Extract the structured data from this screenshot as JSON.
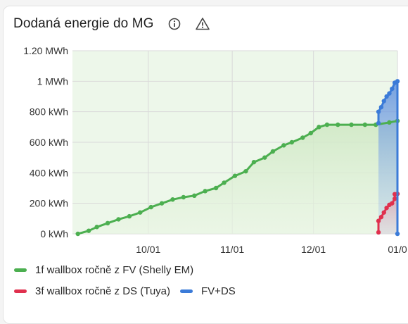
{
  "card": {
    "title": "Dodaná energie do MG",
    "icons": [
      "info-icon",
      "warning-icon"
    ]
  },
  "colors": {
    "green": "#4caf50",
    "red": "#e0304e",
    "blue": "#3b7bd8",
    "area_green": "#dff0d8",
    "grid": "#d9d9d9"
  },
  "chart_data": {
    "type": "line",
    "y_unit": "kWh",
    "ylim": [
      0,
      1200
    ],
    "y_ticks": [
      {
        "value": 0,
        "label": "0 kWh"
      },
      {
        "value": 200,
        "label": "200 kWh"
      },
      {
        "value": 400,
        "label": "400 kWh"
      },
      {
        "value": 600,
        "label": "600 kWh"
      },
      {
        "value": 800,
        "label": "800 kWh"
      },
      {
        "value": 1000,
        "label": "1 MWh"
      },
      {
        "value": 1200,
        "label": "1.20 MWh"
      }
    ],
    "xlim": [
      "2024-09-03",
      "2025-01-01"
    ],
    "x_ticks": [
      {
        "date": "2024-10-01",
        "label": "10/01"
      },
      {
        "date": "2024-11-01",
        "label": "11/01"
      },
      {
        "date": "2024-12-01",
        "label": "12/01"
      },
      {
        "date": "2025-01-01",
        "label": "01/0"
      }
    ],
    "series": [
      {
        "name": "1f wallbox ročně z FV (Shelly EM)",
        "color": "#4caf50",
        "points": [
          [
            "2024-09-05",
            0
          ],
          [
            "2024-09-09",
            20
          ],
          [
            "2024-09-12",
            45
          ],
          [
            "2024-09-16",
            70
          ],
          [
            "2024-09-20",
            95
          ],
          [
            "2024-09-24",
            115
          ],
          [
            "2024-09-28",
            140
          ],
          [
            "2024-10-02",
            175
          ],
          [
            "2024-10-06",
            200
          ],
          [
            "2024-10-10",
            225
          ],
          [
            "2024-10-14",
            240
          ],
          [
            "2024-10-18",
            250
          ],
          [
            "2024-10-22",
            280
          ],
          [
            "2024-10-26",
            300
          ],
          [
            "2024-10-29",
            335
          ],
          [
            "2024-11-02",
            380
          ],
          [
            "2024-11-06",
            410
          ],
          [
            "2024-11-09",
            470
          ],
          [
            "2024-11-13",
            500
          ],
          [
            "2024-11-16",
            540
          ],
          [
            "2024-11-20",
            580
          ],
          [
            "2024-11-23",
            600
          ],
          [
            "2024-11-27",
            630
          ],
          [
            "2024-11-30",
            660
          ],
          [
            "2024-12-03",
            700
          ],
          [
            "2024-12-06",
            715
          ],
          [
            "2024-12-10",
            715
          ],
          [
            "2024-12-15",
            715
          ],
          [
            "2024-12-20",
            715
          ],
          [
            "2024-12-24",
            715
          ],
          [
            "2024-12-29",
            730
          ],
          [
            "2025-01-01",
            740
          ]
        ]
      },
      {
        "name": "3f wallbox ročně z DS (Tuya)",
        "color": "#e0304e",
        "points": [
          [
            "2024-12-25",
            10
          ],
          [
            "2024-12-25",
            85
          ],
          [
            "2024-12-26",
            110
          ],
          [
            "2024-12-27",
            140
          ],
          [
            "2024-12-28",
            170
          ],
          [
            "2024-12-29",
            190
          ],
          [
            "2024-12-30",
            200
          ],
          [
            "2024-12-31",
            230
          ],
          [
            "2024-12-31",
            260
          ],
          [
            "2025-01-01",
            262
          ]
        ]
      },
      {
        "name": "FV+DS",
        "color": "#3b7bd8",
        "points": [
          [
            "2024-12-25",
            725
          ],
          [
            "2024-12-25",
            800
          ],
          [
            "2024-12-26",
            830
          ],
          [
            "2024-12-27",
            870
          ],
          [
            "2024-12-28",
            900
          ],
          [
            "2024-12-29",
            920
          ],
          [
            "2024-12-30",
            950
          ],
          [
            "2024-12-31",
            990
          ],
          [
            "2025-01-01",
            1000
          ],
          [
            "2025-01-01",
            0
          ]
        ]
      }
    ],
    "legend": {
      "position": "bottom"
    },
    "grid": true
  }
}
